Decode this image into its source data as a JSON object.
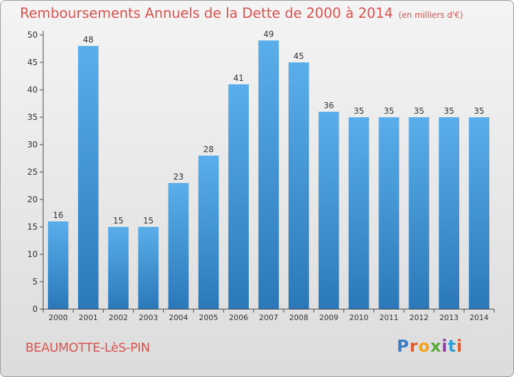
{
  "title": "Remboursements Annuels de la Dette de 2000 à 2014",
  "subtitle": "(en milliers d'€)",
  "commune": "BEAUMOTTE-LèS-PIN",
  "logo_text": "Proxiti",
  "colors": {
    "bar_top": "#5aaeea",
    "bar_bottom": "#2b78b8",
    "title": "#d9534f",
    "axis": "#444444"
  },
  "chart_data": {
    "type": "bar",
    "title": "Remboursements Annuels de la Dette de 2000 à 2014",
    "categories": [
      "2000",
      "2001",
      "2002",
      "2003",
      "2004",
      "2005",
      "2006",
      "2007",
      "2008",
      "2009",
      "2010",
      "2011",
      "2012",
      "2013",
      "2014"
    ],
    "values": [
      16,
      48,
      15,
      15,
      23,
      28,
      41,
      49,
      45,
      36,
      35,
      35,
      35,
      35,
      35
    ],
    "xlabel": "",
    "ylabel": "",
    "ylim": [
      0,
      50
    ],
    "yticks": [
      0,
      5,
      10,
      15,
      20,
      25,
      30,
      35,
      40,
      45,
      50
    ],
    "grid": false,
    "legend": "none"
  }
}
